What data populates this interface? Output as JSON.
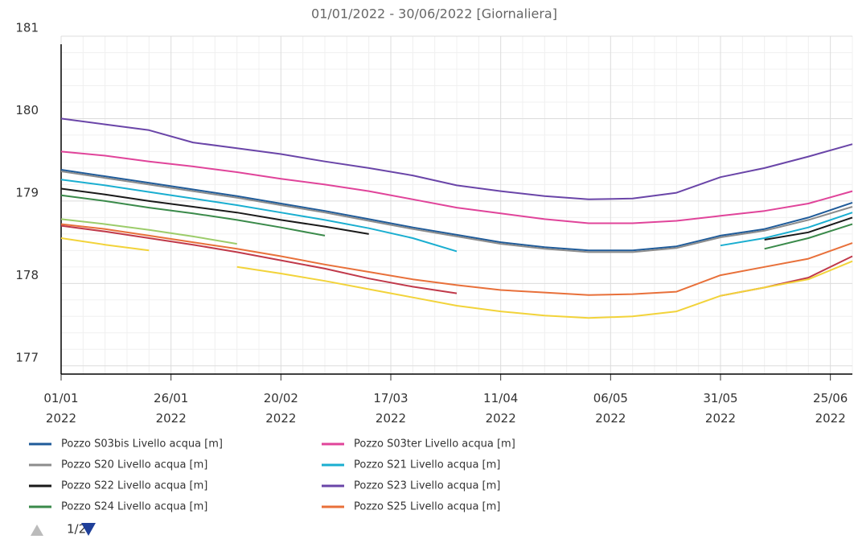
{
  "chart_data": {
    "type": "line",
    "title": "01/01/2022 - 30/06/2022 [Giornaliera]",
    "x": [
      "2022-01-01",
      "2022-01-11",
      "2022-01-21",
      "2022-01-31",
      "2022-02-10",
      "2022-02-20",
      "2022-03-02",
      "2022-03-12",
      "2022-03-22",
      "2022-04-01",
      "2022-04-11",
      "2022-04-21",
      "2022-05-01",
      "2022-05-11",
      "2022-05-21",
      "2022-05-31",
      "2022-06-10",
      "2022-06-20",
      "2022-06-30"
    ],
    "xlim": [
      "2022-01-01",
      "2022-06-30"
    ],
    "xticks": [
      {
        "value": "2022-01-01",
        "label": "01/01 2022"
      },
      {
        "value": "2022-01-26",
        "label": "26/01 2022"
      },
      {
        "value": "2022-02-20",
        "label": "20/02 2022"
      },
      {
        "value": "2022-03-17",
        "label": "17/03 2022"
      },
      {
        "value": "2022-04-11",
        "label": "11/04 2022"
      },
      {
        "value": "2022-05-06",
        "label": "06/05 2022"
      },
      {
        "value": "2022-05-31",
        "label": "31/05 2022"
      },
      {
        "value": "2022-06-25",
        "label": "25/06 2022"
      }
    ],
    "ylim": [
      176.9,
      181
    ],
    "yticks": [
      177,
      178,
      179,
      180,
      181
    ],
    "grid": true,
    "legend_pager": "1/2",
    "series": [
      {
        "name": "Pozzo S03bis Livello acqua [m]",
        "color": "#1f5b99",
        "values": [
          179.38,
          179.3,
          179.22,
          179.14,
          179.06,
          178.97,
          178.88,
          178.78,
          178.68,
          178.59,
          178.5,
          178.44,
          178.4,
          178.4,
          178.45,
          178.58,
          178.66,
          178.8,
          178.98
        ]
      },
      {
        "name": "Pozzo S03ter Livello acqua [m]",
        "color": "#e0449a",
        "values": [
          179.6,
          179.55,
          179.48,
          179.42,
          179.35,
          179.27,
          179.2,
          179.12,
          179.02,
          178.92,
          178.85,
          178.78,
          178.73,
          178.73,
          178.76,
          178.82,
          178.88,
          178.97,
          179.12
        ]
      },
      {
        "name": "Pozzo S20 Livello acqua [m]",
        "color": "#8c8c8c",
        "values": [
          179.36,
          179.28,
          179.2,
          179.12,
          179.04,
          178.95,
          178.86,
          178.76,
          178.66,
          178.57,
          178.48,
          178.42,
          178.38,
          178.38,
          178.43,
          178.56,
          178.64,
          178.77,
          178.93
        ]
      },
      {
        "name": "Pozzo S21 Livello acqua [m]",
        "color": "#1aaed0",
        "values": [
          179.26,
          179.19,
          179.11,
          179.03,
          178.95,
          178.86,
          178.77,
          178.67,
          178.55,
          178.39,
          null,
          null,
          null,
          null,
          null,
          178.46,
          178.55,
          178.68,
          178.86
        ]
      },
      {
        "name": "Pozzo S22 Livello acqua [m]",
        "color": "#1a1a1a",
        "values": [
          179.15,
          179.08,
          179.0,
          178.93,
          178.86,
          178.77,
          178.69,
          178.6,
          null,
          null,
          null,
          null,
          null,
          null,
          null,
          null,
          178.53,
          178.62,
          178.8
        ]
      },
      {
        "name": "Pozzo S23 Livello acqua [m]",
        "color": "#6a45a8",
        "values": [
          180.0,
          179.93,
          179.86,
          179.71,
          179.64,
          179.57,
          179.48,
          179.4,
          179.31,
          179.19,
          179.12,
          179.06,
          179.02,
          179.03,
          179.1,
          179.29,
          179.4,
          179.54,
          179.69
        ]
      },
      {
        "name": "Pozzo S24 Livello acqua [m]",
        "color": "#3a8a4a",
        "values": [
          179.07,
          179.0,
          178.92,
          178.85,
          178.77,
          178.68,
          178.58,
          null,
          null,
          null,
          null,
          null,
          null,
          null,
          null,
          null,
          178.42,
          178.55,
          178.72
        ]
      },
      {
        "name": "Pozzo S25 Livello acqua [m]",
        "color": "#e8703a",
        "values": [
          178.72,
          178.66,
          178.58,
          178.5,
          178.42,
          178.33,
          178.23,
          178.14,
          178.05,
          177.98,
          177.92,
          177.89,
          177.86,
          177.87,
          177.9,
          178.1,
          178.2,
          178.3,
          178.49
        ]
      },
      {
        "color": "#c0394a",
        "values": [
          178.7,
          178.63,
          178.55,
          178.47,
          178.38,
          178.28,
          178.18,
          178.06,
          177.96,
          177.88,
          null,
          null,
          null,
          null,
          null,
          177.85,
          177.95,
          178.07,
          178.33
        ]
      },
      {
        "color": "#f2d33a",
        "values": [
          178.55,
          178.47,
          178.4,
          null,
          178.2,
          178.12,
          178.03,
          177.93,
          177.83,
          177.73,
          177.66,
          177.61,
          177.58,
          177.6,
          177.66,
          177.85,
          177.95,
          178.05,
          178.27
        ]
      },
      {
        "color": "#9ccc6a",
        "values": [
          178.78,
          178.72,
          178.65,
          178.57,
          178.48,
          null,
          null,
          null,
          null,
          null,
          null,
          null,
          null,
          null,
          null,
          null,
          null,
          null,
          null
        ]
      }
    ]
  }
}
